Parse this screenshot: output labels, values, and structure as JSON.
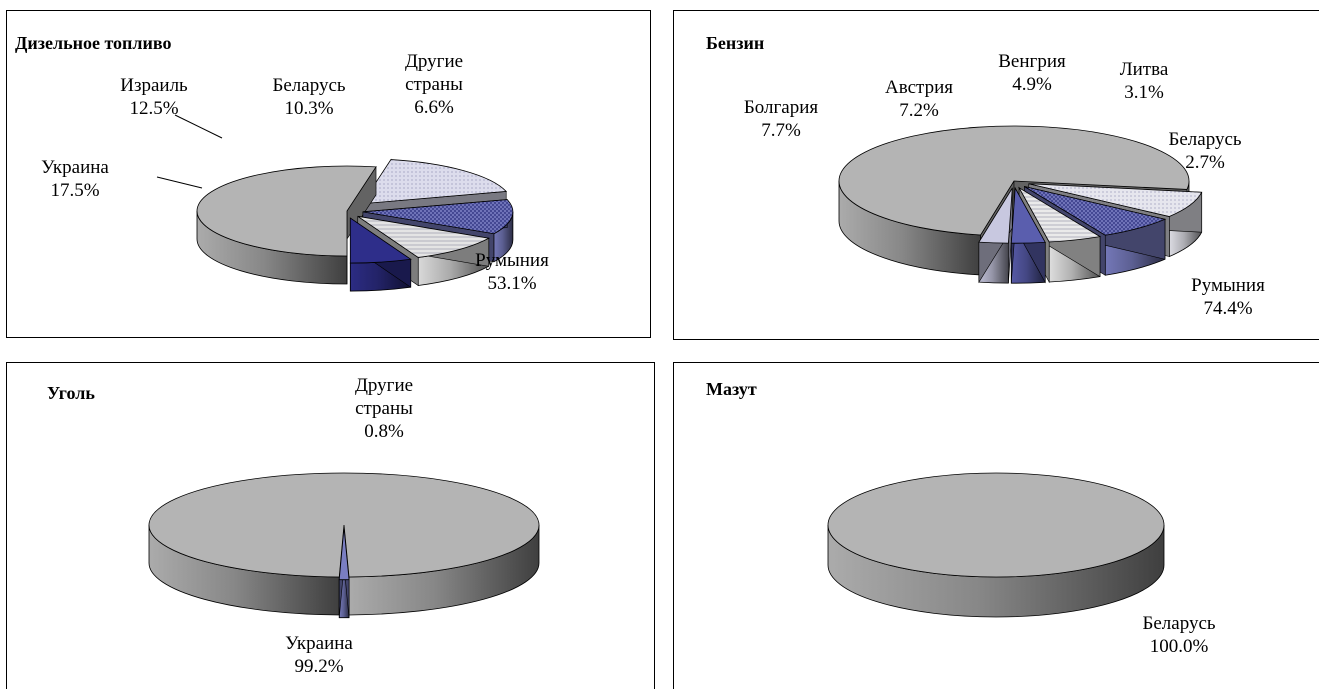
{
  "chart_data": [
    {
      "type": "pie",
      "title": "Дизельное топливо",
      "slices": [
        {
          "label": "Румыния",
          "value": 53.1,
          "value_text": "53.1%",
          "color": "#b4b4b4",
          "pattern": "solid"
        },
        {
          "label": "Украина",
          "value": 17.5,
          "value_text": "17.5%",
          "color": "#dcdcec",
          "pattern": "dots"
        },
        {
          "label": "Израиль",
          "value": 12.5,
          "value_text": "12.5%",
          "color": "#7a7ec2",
          "pattern": "cross"
        },
        {
          "label": "Беларусь",
          "value": 10.3,
          "value_text": "10.3%",
          "color": "#e4e4e4",
          "pattern": "hatch"
        },
        {
          "label": "Другие\nстраны",
          "value": 6.6,
          "value_text": "6.6%",
          "color": "#2e2e8a",
          "pattern": "solid"
        }
      ]
    },
    {
      "type": "pie",
      "title": "Бензин",
      "slices": [
        {
          "label": "Румыния",
          "value": 74.4,
          "value_text": "74.4%",
          "color": "#b4b4b4",
          "pattern": "solid"
        },
        {
          "label": "Болгария",
          "value": 7.7,
          "value_text": "7.7%",
          "color": "#e6e6ee",
          "pattern": "dots"
        },
        {
          "label": "Австрия",
          "value": 7.2,
          "value_text": "7.2%",
          "color": "#7a7ec2",
          "pattern": "cross"
        },
        {
          "label": "Венгрия",
          "value": 4.9,
          "value_text": "4.9%",
          "color": "#eaeaea",
          "pattern": "hatch"
        },
        {
          "label": "Литва",
          "value": 3.1,
          "value_text": "3.1%",
          "color": "#5a5eae",
          "pattern": "solid"
        },
        {
          "label": "Беларусь",
          "value": 2.7,
          "value_text": "2.7%",
          "color": "#c8c8e0",
          "pattern": "solid"
        }
      ]
    },
    {
      "type": "pie",
      "title": "Уголь",
      "slices": [
        {
          "label": "Украина",
          "value": 99.2,
          "value_text": "99.2%",
          "color": "#b4b4b4",
          "pattern": "solid"
        },
        {
          "label": "Другие\nстраны",
          "value": 0.8,
          "value_text": "0.8%",
          "color": "#7a7ec2",
          "pattern": "solid"
        }
      ]
    },
    {
      "type": "pie",
      "title": "Мазут",
      "slices": [
        {
          "label": "Беларусь",
          "value": 100.0,
          "value_text": "100.0%",
          "color": "#b4b4b4",
          "pattern": "solid"
        }
      ]
    }
  ]
}
